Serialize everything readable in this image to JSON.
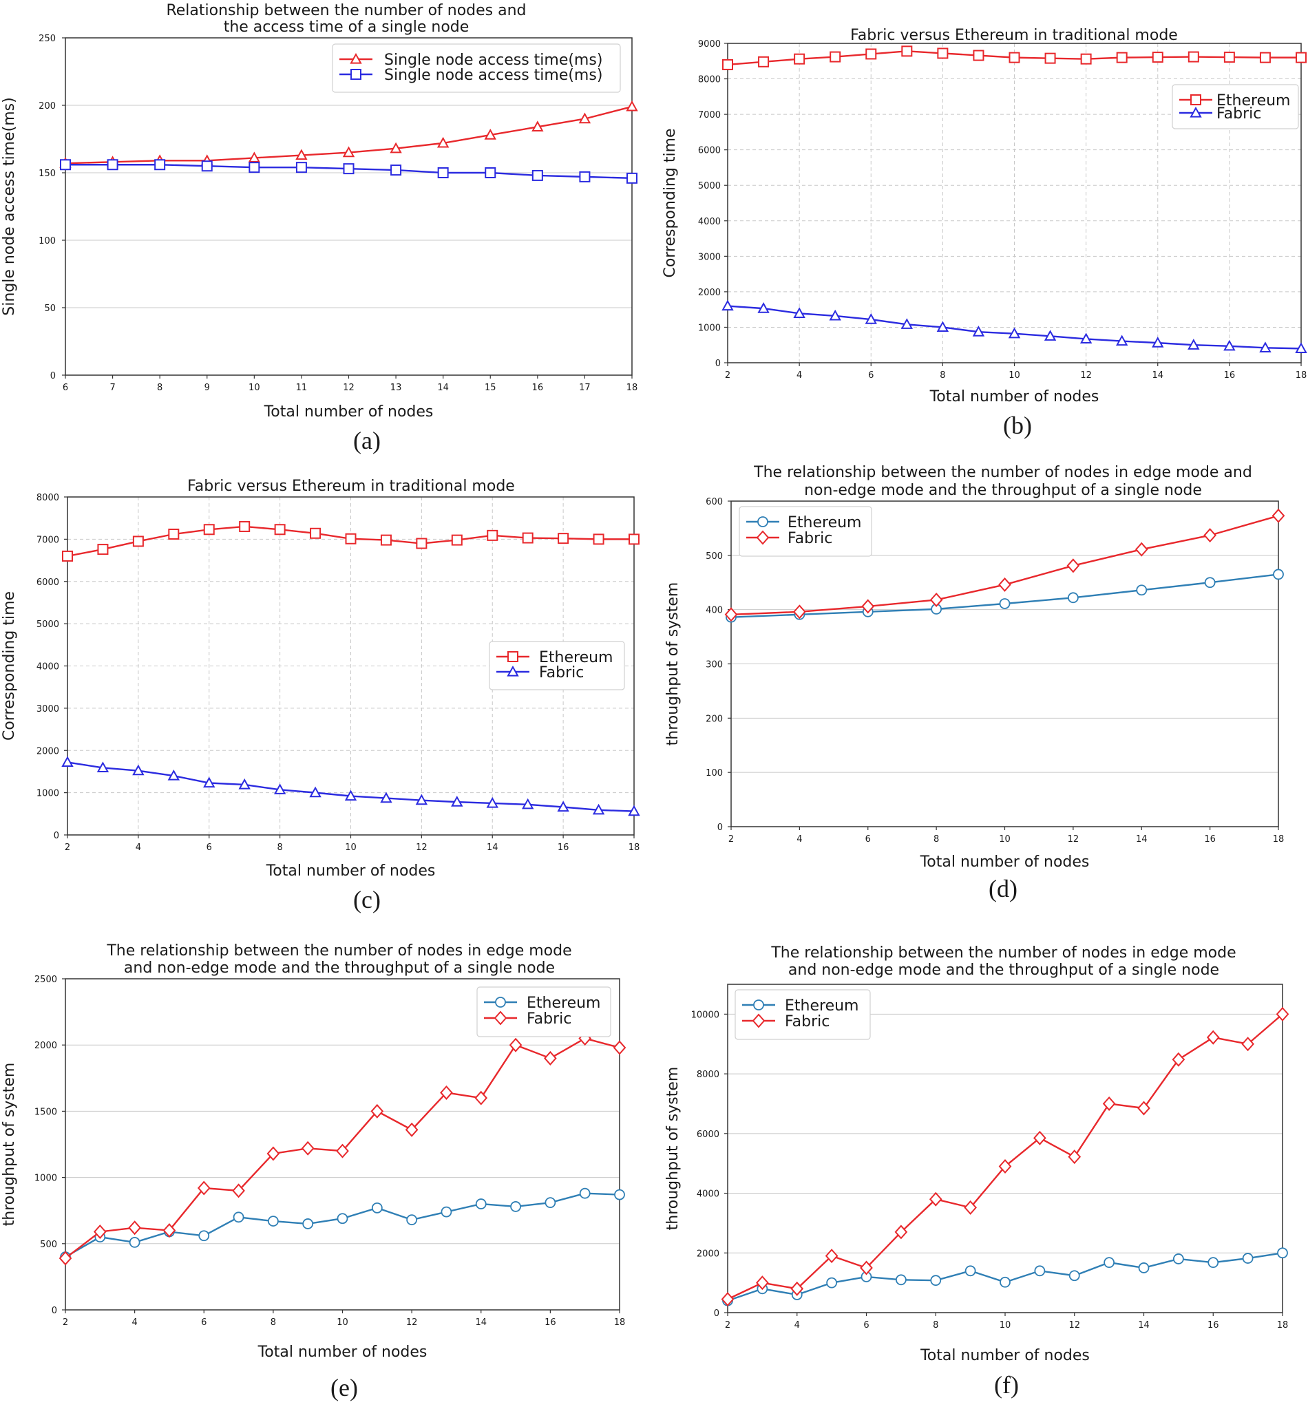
{
  "chart_data": [
    {
      "panel": "(a)",
      "type": "line",
      "title": [
        "Relationship between the number of nodes and",
        "the access time of a single node"
      ],
      "xlabel": "Total number of nodes",
      "ylabel": "Single node access time(ms)",
      "xlim": [
        6,
        18
      ],
      "ylim": [
        0,
        250
      ],
      "xticks": [
        "6",
        "7",
        "8",
        "9",
        "10",
        "11",
        "12",
        "13",
        "14",
        "15",
        "16",
        "17",
        "18"
      ],
      "yticks": [
        "0",
        "50",
        "100",
        "150",
        "200",
        "250"
      ],
      "grid": "horizontal",
      "legend_position": "top-right",
      "x": [
        6,
        7,
        8,
        9,
        10,
        11,
        12,
        13,
        14,
        15,
        16,
        17,
        18
      ],
      "series": [
        {
          "name": "Single node access time(ms)",
          "color": "#e8282c",
          "marker": "triangle",
          "values": [
            157,
            158,
            159,
            159,
            161,
            163,
            165,
            168,
            172,
            178,
            184,
            190,
            199
          ]
        },
        {
          "name": "Single node access time(ms)",
          "color": "#2b2be0",
          "marker": "square",
          "values": [
            156,
            156,
            156,
            155,
            154,
            154,
            153,
            152,
            150,
            150,
            148,
            147,
            146
          ]
        }
      ]
    },
    {
      "panel": "(b)",
      "type": "line",
      "title": [
        "Fabric versus Ethereum in traditional mode"
      ],
      "xlabel": "Total number of nodes",
      "ylabel": "Corresponding time",
      "xlim": [
        2,
        18
      ],
      "ylim": [
        0,
        9000
      ],
      "xticks": [
        "2",
        "4",
        "6",
        "8",
        "10",
        "12",
        "14",
        "16",
        "18"
      ],
      "yticks": [
        "0",
        "1000",
        "2000",
        "3000",
        "4000",
        "5000",
        "6000",
        "7000",
        "8000",
        "9000"
      ],
      "grid": "dashed",
      "legend_position": "upper-right",
      "x": [
        2,
        3,
        4,
        5,
        6,
        7,
        8,
        9,
        10,
        11,
        12,
        13,
        14,
        15,
        16,
        17,
        18
      ],
      "series": [
        {
          "name": "Ethereum",
          "color": "#e8282c",
          "marker": "square",
          "values": [
            8400,
            8480,
            8560,
            8620,
            8700,
            8780,
            8720,
            8660,
            8600,
            8580,
            8560,
            8600,
            8610,
            8620,
            8610,
            8600,
            8600
          ]
        },
        {
          "name": "Fabric",
          "color": "#2b2be0",
          "marker": "triangle",
          "values": [
            1600,
            1530,
            1390,
            1320,
            1220,
            1080,
            1000,
            870,
            820,
            750,
            670,
            610,
            560,
            500,
            470,
            420,
            400
          ]
        }
      ]
    },
    {
      "panel": "(c)",
      "type": "line",
      "title": [
        "Fabric versus Ethereum in traditional mode"
      ],
      "xlabel": "Total number of nodes",
      "ylabel": "Corresponding time",
      "xlim": [
        2,
        18
      ],
      "ylim": [
        0,
        8000
      ],
      "xticks": [
        "2",
        "4",
        "6",
        "8",
        "10",
        "12",
        "14",
        "16",
        "18"
      ],
      "yticks": [
        "0",
        "1000",
        "2000",
        "3000",
        "4000",
        "5000",
        "6000",
        "7000",
        "8000"
      ],
      "grid": "dashed",
      "legend_position": "center-right",
      "x": [
        2,
        3,
        4,
        5,
        6,
        7,
        8,
        9,
        10,
        11,
        12,
        13,
        14,
        15,
        16,
        17,
        18
      ],
      "series": [
        {
          "name": "Ethereum",
          "color": "#e8282c",
          "marker": "square",
          "values": [
            6600,
            6760,
            6950,
            7120,
            7230,
            7300,
            7230,
            7140,
            7010,
            6980,
            6900,
            6980,
            7090,
            7030,
            7020,
            7000,
            7000
          ]
        },
        {
          "name": "Fabric",
          "color": "#2b2be0",
          "marker": "triangle",
          "values": [
            1720,
            1590,
            1520,
            1400,
            1230,
            1190,
            1070,
            1000,
            920,
            870,
            820,
            780,
            750,
            720,
            660,
            590,
            560
          ]
        }
      ]
    },
    {
      "panel": "(d)",
      "type": "line",
      "title": [
        "The relationship between the number of nodes in edge mode and",
        "non-edge mode and the throughput of a single node"
      ],
      "xlabel": "Total number of nodes",
      "ylabel": "throughput of system",
      "xlim": [
        2,
        18
      ],
      "ylim": [
        0,
        600
      ],
      "xticks": [
        "2",
        "4",
        "6",
        "8",
        "10",
        "12",
        "14",
        "16",
        "18"
      ],
      "yticks": [
        "0",
        "100",
        "200",
        "300",
        "400",
        "500",
        "600"
      ],
      "grid": "horizontal",
      "legend_position": "top-left",
      "x": [
        2,
        4,
        6,
        8,
        10,
        12,
        14,
        16,
        18
      ],
      "series": [
        {
          "name": "Ethereum",
          "color": "#2f7fb5",
          "marker": "circle",
          "values": [
            386,
            391,
            396,
            401,
            411,
            422,
            436,
            450,
            465
          ]
        },
        {
          "name": "Fabric",
          "color": "#e8282c",
          "marker": "diamond",
          "values": [
            391,
            396,
            406,
            418,
            446,
            481,
            511,
            537,
            573
          ]
        }
      ]
    },
    {
      "panel": "(e)",
      "type": "line",
      "title": [
        "The relationship between the number of nodes in edge mode",
        "and non-edge mode and the throughput of a single node"
      ],
      "xlabel": "Total number of nodes",
      "ylabel": "throughput of system",
      "xlim": [
        2,
        18
      ],
      "ylim": [
        0,
        2500
      ],
      "xticks": [
        "2",
        "4",
        "6",
        "8",
        "10",
        "12",
        "14",
        "16",
        "18"
      ],
      "yticks": [
        "0",
        "500",
        "1000",
        "1500",
        "2000",
        "2500"
      ],
      "grid": "horizontal",
      "legend_position": "top-right",
      "x": [
        2,
        3,
        4,
        5,
        6,
        7,
        8,
        9,
        10,
        11,
        12,
        13,
        14,
        15,
        16,
        17,
        18
      ],
      "series": [
        {
          "name": "Ethereum",
          "color": "#2f7fb5",
          "marker": "circle",
          "values": [
            400,
            550,
            510,
            590,
            560,
            700,
            670,
            650,
            690,
            770,
            680,
            740,
            800,
            780,
            810,
            880,
            870
          ]
        },
        {
          "name": "Fabric",
          "color": "#e8282c",
          "marker": "diamond",
          "values": [
            390,
            590,
            620,
            600,
            920,
            900,
            1180,
            1220,
            1200,
            1500,
            1360,
            1640,
            1600,
            2000,
            1900,
            2050,
            1980
          ]
        }
      ]
    },
    {
      "panel": "(f)",
      "type": "line",
      "title": [
        "The relationship between the number of nodes in edge mode",
        "and non-edge mode and the throughput of a single node"
      ],
      "xlabel": "Total number of nodes",
      "ylabel": "throughput of system",
      "xlim": [
        2,
        18
      ],
      "ylim": [
        0,
        11000
      ],
      "xticks": [
        "2",
        "4",
        "6",
        "8",
        "10",
        "12",
        "14",
        "16",
        "18"
      ],
      "yticks": [
        "0",
        "2000",
        "4000",
        "6000",
        "8000",
        "10000"
      ],
      "grid": "horizontal",
      "legend_position": "top-left",
      "x": [
        2,
        3,
        4,
        5,
        6,
        7,
        8,
        9,
        10,
        11,
        12,
        13,
        14,
        15,
        16,
        17,
        18
      ],
      "series": [
        {
          "name": "Ethereum",
          "color": "#2f7fb5",
          "marker": "circle",
          "values": [
            400,
            800,
            600,
            1000,
            1200,
            1100,
            1080,
            1400,
            1020,
            1400,
            1240,
            1680,
            1500,
            1800,
            1680,
            1820,
            2000
          ]
        },
        {
          "name": "Fabric",
          "color": "#e8282c",
          "marker": "diamond",
          "values": [
            450,
            1000,
            800,
            1900,
            1500,
            2700,
            3800,
            3520,
            4900,
            5850,
            5220,
            7000,
            6850,
            8480,
            9220,
            9000,
            10000
          ]
        }
      ]
    }
  ]
}
